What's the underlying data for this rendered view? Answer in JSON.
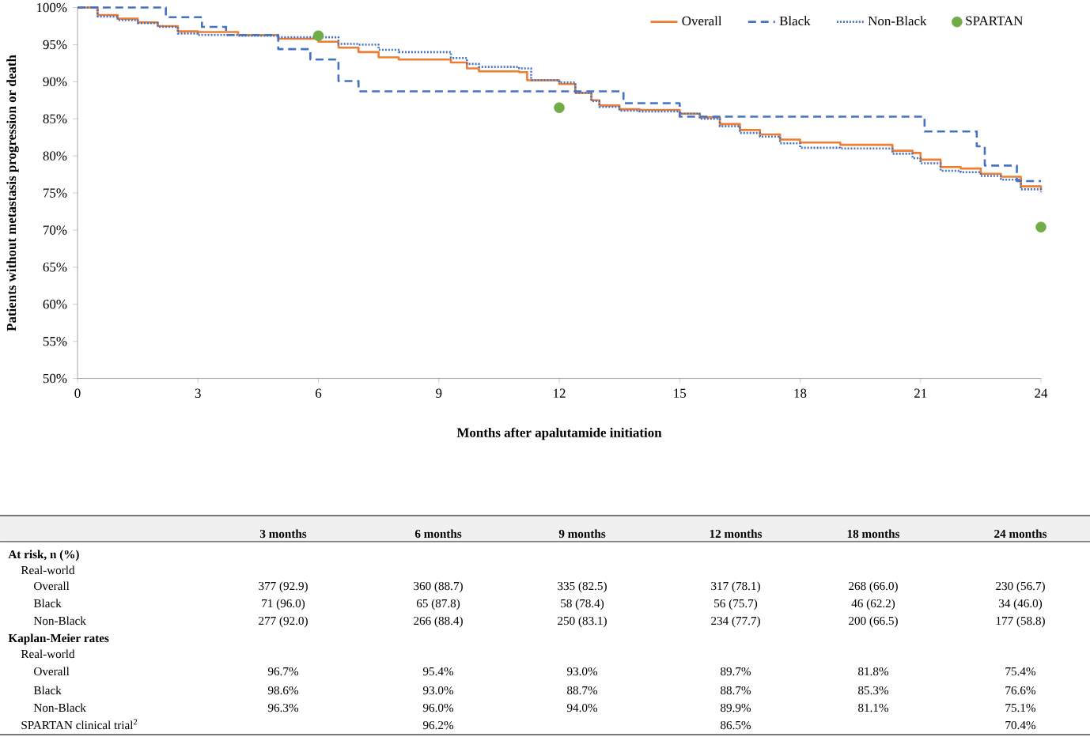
{
  "chart_data": {
    "type": "step",
    "xlabel": "Months after apalutamide initiation",
    "ylabel": "Patients without metastasis progression or death",
    "xlim": [
      0,
      24
    ],
    "xticks": [
      0,
      3,
      6,
      9,
      12,
      15,
      18,
      21,
      24
    ],
    "ylim": [
      50,
      100
    ],
    "yticks": [
      {
        "value": 50,
        "label": "50%"
      },
      {
        "value": 55,
        "label": "55%"
      },
      {
        "value": 60,
        "label": "60%"
      },
      {
        "value": 65,
        "label": "65%"
      },
      {
        "value": 70,
        "label": "70%"
      },
      {
        "value": 75,
        "label": "75%"
      },
      {
        "value": 80,
        "label": "80%"
      },
      {
        "value": 85,
        "label": "85%"
      },
      {
        "value": 90,
        "label": "90%"
      },
      {
        "value": 95,
        "label": "95%"
      },
      {
        "value": 100,
        "label": "100%"
      }
    ],
    "grid": false,
    "legend": "top right",
    "series": [
      {
        "name": "Overall",
        "color": "#ed7d31",
        "line_style": "solid",
        "x": [
          0,
          0.5,
          1,
          1.5,
          2,
          2.5,
          3,
          4,
          5,
          6,
          6.5,
          7,
          7.5,
          8,
          9,
          9.3,
          9.7,
          10,
          11,
          11.2,
          12,
          12.4,
          12.8,
          13,
          13.5,
          14,
          15,
          15.5,
          16,
          16.5,
          17,
          17.5,
          18,
          19,
          20,
          20.3,
          20.8,
          21,
          21.5,
          22,
          22.5,
          23,
          23.5,
          24
        ],
        "values": [
          100,
          99,
          98.5,
          98,
          97.5,
          96.8,
          96.7,
          96.3,
          95.8,
          95.4,
          94.6,
          94,
          93.3,
          93,
          93,
          92.6,
          91.8,
          91.4,
          91.3,
          90.2,
          89.7,
          88.5,
          87.5,
          86.8,
          86.3,
          86.2,
          85.7,
          85.2,
          84.3,
          83.5,
          82.9,
          82.2,
          81.8,
          81.5,
          81.5,
          80.7,
          80.4,
          79.5,
          78.5,
          78.3,
          77.6,
          77.2,
          75.9,
          75.4
        ]
      },
      {
        "name": "Black",
        "color": "#4472c4",
        "line_style": "dashed",
        "x": [
          0,
          2.2,
          3.1,
          3.7,
          5,
          5.8,
          6.5,
          7,
          13.6,
          15,
          21.1,
          22.4,
          22.6,
          23.4,
          24
        ],
        "values": [
          100,
          98.7,
          97.4,
          96.3,
          94.4,
          93,
          90.1,
          88.7,
          87.1,
          85.3,
          83.3,
          81.3,
          78.7,
          76.6,
          76.6
        ]
      },
      {
        "name": "Non-Black",
        "color": "#4472c4",
        "line_style": "dotted",
        "x": [
          0,
          0.5,
          1,
          1.5,
          2,
          2.5,
          3,
          4,
          5,
          6,
          6.5,
          7,
          7.5,
          8,
          9,
          9.3,
          9.7,
          10,
          11,
          11.3,
          12,
          12.4,
          12.8,
          13,
          13.5,
          14,
          15,
          15.5,
          16,
          16.5,
          17,
          17.5,
          18,
          19,
          20,
          20.3,
          20.8,
          21,
          21.5,
          22,
          22.5,
          23,
          23.5,
          24
        ],
        "values": [
          100,
          98.8,
          98.3,
          97.9,
          97.4,
          96.5,
          96.3,
          96.2,
          96,
          96,
          95.1,
          95,
          94.3,
          94,
          94,
          93.2,
          92.4,
          92,
          91.8,
          90.2,
          89.9,
          88.5,
          87.4,
          86.6,
          86.1,
          86,
          85.7,
          85,
          84,
          83.1,
          82.6,
          81.7,
          81.1,
          81,
          81,
          80.3,
          79.7,
          79,
          78,
          77.8,
          77.3,
          76.8,
          75.5,
          75.1
        ]
      },
      {
        "name": "SPARTAN",
        "type": "scatter",
        "color": "#70ad47",
        "marker": "circle",
        "x": [
          6,
          12,
          24
        ],
        "values": [
          96.2,
          86.5,
          70.4
        ]
      }
    ],
    "annotations": [
      "3 months",
      "6 months",
      "9 months",
      "12 months",
      "18 months",
      "24 months",
      "At risk, n (%)",
      "Real-world",
      "Overall",
      "377 (92.9)",
      "360 (88.7)",
      "335 (82.5)",
      "317 (78.1)",
      "268 (66.0)",
      "230 (56.7)",
      "Black",
      "71 (96.0)",
      "65 (87.8)",
      "58 (78.4)",
      "56 (75.7)",
      "46 (62.2)",
      "34 (46.0)",
      "Non-Black",
      "277 (92.0)",
      "266 (88.4)",
      "250 (83.1)",
      "234 (77.7)",
      "200 (66.5)",
      "177 (58.8)",
      "Kaplan-Meier rates",
      "Real-world",
      "Overall",
      "96.7%",
      "95.4%",
      "93.0%",
      "89.7%",
      "81.8%",
      "75.4%",
      "Black",
      "98.6%",
      "93.0%",
      "88.7%",
      "88.7%",
      "85.3%",
      "76.6%",
      "Non-Black",
      "96.3%",
      "96.0%",
      "94.0%",
      "89.9%",
      "81.1%",
      "75.1%",
      "SPARTAN clinical trial$^{2}$",
      "96.2%",
      "86.5%",
      "70.4%"
    ]
  }
}
